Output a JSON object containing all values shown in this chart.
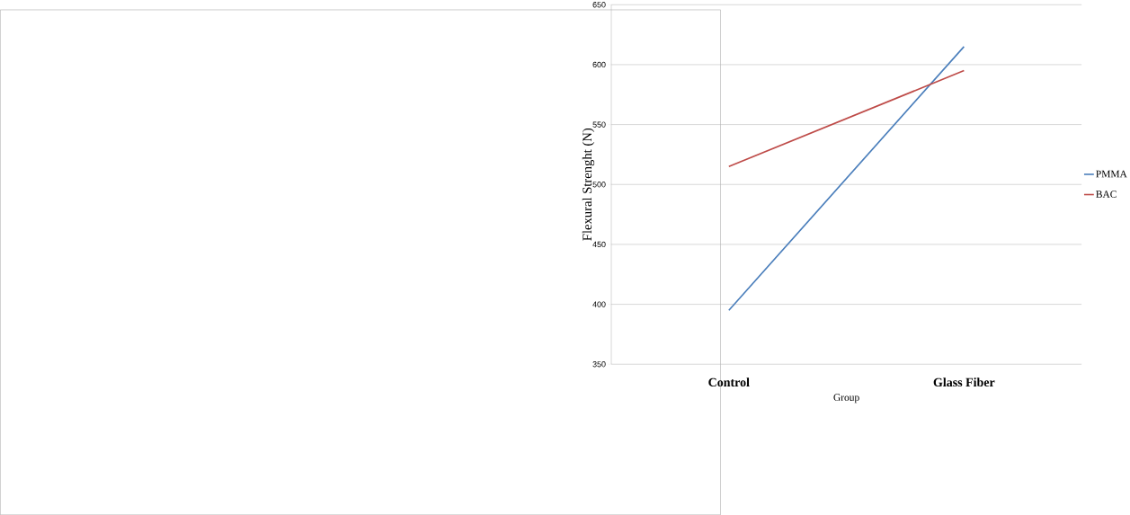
{
  "chart_data": {
    "type": "line",
    "xlabel": "Group",
    "ylabel": "Flexural Strenght (N)",
    "categories": [
      "Control",
      "Glass Fiber"
    ],
    "series": [
      {
        "name": "PMMA",
        "color": "#4a7ebb",
        "values": [
          395,
          615
        ]
      },
      {
        "name": "BAC",
        "color": "#be4b48",
        "values": [
          515,
          595
        ]
      }
    ],
    "ylim": [
      350,
      650
    ],
    "yticks": [
      350,
      400,
      450,
      500,
      550,
      600,
      650
    ],
    "grid": "y",
    "legend": "right",
    "marker": "none",
    "line_style": "solid"
  }
}
